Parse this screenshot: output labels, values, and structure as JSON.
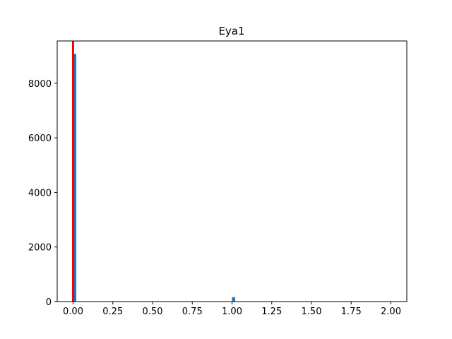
{
  "chart_data": {
    "type": "bar",
    "title": "Eya1",
    "xlabel": "",
    "ylabel": "",
    "xlim": [
      -0.1,
      2.1
    ],
    "ylim": [
      0,
      9550
    ],
    "x_ticks": [
      "0.00",
      "0.25",
      "0.50",
      "0.75",
      "1.00",
      "1.25",
      "1.50",
      "1.75",
      "2.00"
    ],
    "y_ticks": [
      "0",
      "2000",
      "4000",
      "6000",
      "8000"
    ],
    "bin_width": 0.02,
    "bins": [
      {
        "x_start": 0.0,
        "x_end": 0.02,
        "count": 9080
      },
      {
        "x_start": 1.0,
        "x_end": 1.02,
        "count": 160
      }
    ],
    "vline": {
      "x": 0.0,
      "color": "#ff0000"
    },
    "bar_color": "#1f77b4",
    "grid": false
  }
}
